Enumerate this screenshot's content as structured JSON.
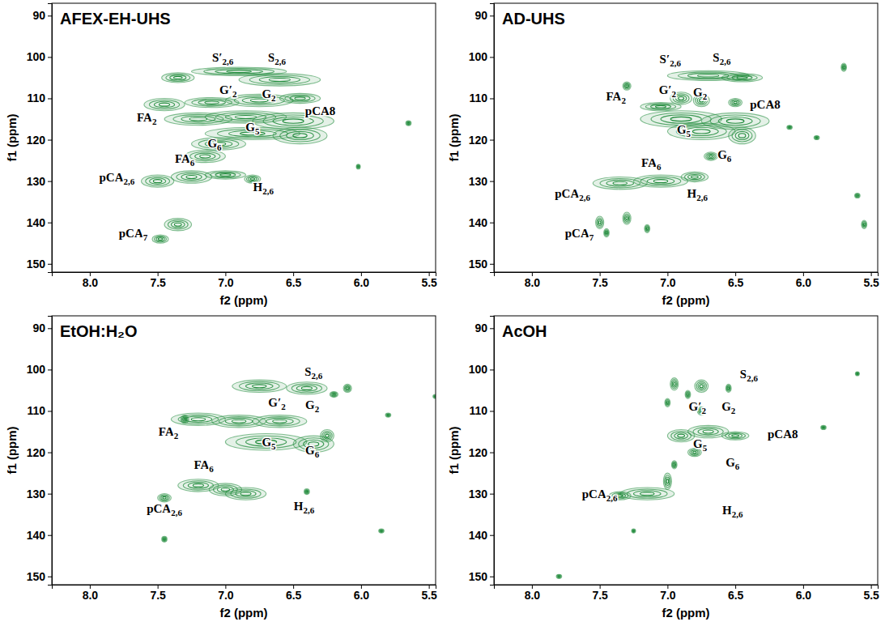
{
  "chart_data": [
    {
      "type": "contour",
      "title": "AFEX-EH-UHS",
      "x_label": "f2 (ppm)",
      "y_label": "f1 (ppm)",
      "color": "#1f8a3a",
      "xlim": [
        8.28,
        5.45
      ],
      "ylim": [
        87,
        152
      ],
      "xticks": [
        {
          "value": 8,
          "label": "8.0"
        },
        7.5,
        {
          "value": 7,
          "label": "7.0"
        },
        6.5,
        {
          "value": 6,
          "label": "6.0"
        },
        5.5
      ],
      "yticks": [
        90,
        100,
        110,
        120,
        130,
        140,
        150
      ],
      "peaks": {
        "x": [
          7.35,
          6.9,
          6.6,
          7.45,
          7.1,
          6.75,
          6.45,
          7.2,
          6.85,
          6.5,
          6.8,
          6.45,
          7.05,
          7.15,
          7.5,
          7.25,
          7.0,
          6.8,
          7.35,
          7.48,
          5.65,
          6.02
        ],
        "y": [
          105,
          103.5,
          105.5,
          111.5,
          111,
          110.5,
          110,
          115,
          114.5,
          115.5,
          118.5,
          119,
          121,
          124,
          130,
          129,
          128.5,
          129.5,
          140.5,
          144,
          116,
          126.5
        ],
        "dx": [
          0.12,
          0.35,
          0.3,
          0.15,
          0.2,
          0.25,
          0.15,
          0.25,
          0.3,
          0.3,
          0.35,
          0.2,
          0.2,
          0.15,
          0.12,
          0.15,
          0.15,
          0.06,
          0.1,
          0.06,
          0.02,
          0.015
        ],
        "dy": [
          1.2,
          1.0,
          1.5,
          1.5,
          1.2,
          1.5,
          1.2,
          1.5,
          1.5,
          2,
          1.5,
          2,
          1.5,
          1.5,
          1.5,
          1.5,
          1,
          1,
          1.5,
          1,
          0.6,
          0.6
        ]
      },
      "labels": [
        {
          "text": "S′",
          "sub": "2,6",
          "x": 7.02,
          "y": 101
        },
        {
          "text": "S",
          "sub": "2,6",
          "x": 6.62,
          "y": 101
        },
        {
          "text": "G′",
          "sub": "2",
          "x": 6.98,
          "y": 109
        },
        {
          "text": "G",
          "sub": "2",
          "x": 6.68,
          "y": 110
        },
        {
          "text": "FA",
          "sub": "2",
          "x": 7.58,
          "y": 115.5
        },
        {
          "text": "pCA8",
          "x": 6.3,
          "y": 114
        },
        {
          "text": "G",
          "sub": "5",
          "x": 6.8,
          "y": 118
        },
        {
          "text": "G",
          "sub": "6",
          "x": 7.08,
          "y": 121.8
        },
        {
          "text": "FA",
          "sub": "6",
          "x": 7.3,
          "y": 125.5
        },
        {
          "text": "pCA",
          "sub": "2,6",
          "x": 7.8,
          "y": 130
        },
        {
          "text": "H",
          "sub": "2,6",
          "x": 6.72,
          "y": 132.5
        },
        {
          "text": "pCA",
          "sub": "7",
          "x": 7.68,
          "y": 143.5
        }
      ]
    },
    {
      "type": "contour",
      "title": "AD-UHS",
      "x_label": "f2 (ppm)",
      "y_label": "f1 (ppm)",
      "color": "#1f8a3a",
      "xlim": [
        8.28,
        5.45
      ],
      "ylim": [
        87,
        152
      ],
      "xticks": [
        {
          "value": 8,
          "label": "8.0"
        },
        7.5,
        {
          "value": 7,
          "label": "7.0"
        },
        6.5,
        {
          "value": 6,
          "label": "6.0"
        },
        5.5
      ],
      "yticks": [
        90,
        100,
        110,
        120,
        130,
        140,
        150
      ],
      "peaks": {
        "x": [
          6.7,
          6.45,
          7.3,
          6.9,
          6.75,
          6.5,
          7.05,
          6.9,
          6.5,
          6.75,
          6.45,
          7.35,
          7.05,
          6.8,
          6.68,
          7.5,
          7.3,
          7.45,
          7.15,
          5.7,
          5.55,
          5.9,
          6.1,
          5.6
        ],
        "y": [
          104.5,
          105,
          107,
          110,
          110.5,
          111,
          112,
          115,
          115.5,
          118,
          119,
          130.5,
          130,
          129,
          124,
          140,
          139,
          142.5,
          141.5,
          102.5,
          140.5,
          119.5,
          117,
          133.5
        ],
        "dx": [
          0.3,
          0.15,
          0.03,
          0.08,
          0.06,
          0.05,
          0.15,
          0.3,
          0.25,
          0.25,
          0.1,
          0.2,
          0.2,
          0.1,
          0.05,
          0.03,
          0.03,
          0.02,
          0.02,
          0.02,
          0.02,
          0.02,
          0.02,
          0.02
        ],
        "dy": [
          1.2,
          1,
          1,
          1.5,
          1.5,
          1,
          1,
          2,
          2,
          2,
          2,
          1.5,
          1.5,
          1.2,
          1,
          1.5,
          1.5,
          1,
          1,
          1,
          1,
          0.5,
          0.5,
          0.6
        ]
      },
      "labels": [
        {
          "text": "S′",
          "sub": "2,6",
          "x": 6.98,
          "y": 101.5
        },
        {
          "text": "S",
          "sub": "2,6",
          "x": 6.6,
          "y": 101
        },
        {
          "text": "FA",
          "sub": "2",
          "x": 7.38,
          "y": 110.5
        },
        {
          "text": "G′",
          "sub": "2",
          "x": 7.0,
          "y": 109
        },
        {
          "text": "G",
          "sub": "2",
          "x": 6.76,
          "y": 109.5
        },
        {
          "text": "pCA8",
          "x": 6.28,
          "y": 112.5
        },
        {
          "text": "G",
          "sub": "5",
          "x": 6.88,
          "y": 118.5
        },
        {
          "text": "G",
          "sub": "6",
          "x": 6.58,
          "y": 124.5
        },
        {
          "text": "FA",
          "sub": "6",
          "x": 7.12,
          "y": 126.5
        },
        {
          "text": "pCA",
          "sub": "2,6",
          "x": 7.7,
          "y": 134
        },
        {
          "text": "H",
          "sub": "2,6",
          "x": 6.78,
          "y": 134
        },
        {
          "text": "pCA",
          "sub": "7",
          "x": 7.65,
          "y": 143.5
        }
      ]
    },
    {
      "type": "contour",
      "title": "EtOH:H₂O",
      "x_label": "f2 (ppm)",
      "y_label": "f1 (ppm)",
      "color": "#1f8a3a",
      "xlim": [
        8.28,
        5.45
      ],
      "ylim": [
        87,
        152
      ],
      "xticks": [
        {
          "value": 8,
          "label": "8.0"
        },
        7.5,
        {
          "value": 7,
          "label": "7.0"
        },
        6.5,
        {
          "value": 6,
          "label": "6.0"
        },
        5.5
      ],
      "yticks": [
        90,
        100,
        110,
        120,
        130,
        140,
        150
      ],
      "peaks": {
        "x": [
          6.75,
          6.4,
          7.2,
          6.9,
          6.6,
          6.25,
          6.7,
          6.35,
          7.45,
          7.2,
          6.85,
          7.0,
          7.3,
          6.1,
          6.2,
          6.4,
          5.85,
          7.45,
          5.8,
          5.45
        ],
        "y": [
          104,
          104.5,
          112,
          112.5,
          112.5,
          116,
          117.5,
          118,
          131,
          128,
          130,
          129,
          112,
          104.5,
          106,
          129.5,
          139,
          141,
          111,
          106.5
        ],
        "dx": [
          0.2,
          0.15,
          0.2,
          0.2,
          0.2,
          0.05,
          0.3,
          0.15,
          0.05,
          0.15,
          0.15,
          0.12,
          0.03,
          0.03,
          0.03,
          0.02,
          0.02,
          0.02,
          0.02,
          0.02
        ],
        "dy": [
          1.5,
          1.5,
          1.5,
          1.5,
          1.5,
          1.5,
          2,
          2,
          1,
          1.5,
          1.5,
          1.5,
          1,
          1,
          0.7,
          0.7,
          0.5,
          0.7,
          0.5,
          0.5
        ]
      },
      "labels": [
        {
          "text": "S",
          "sub": "2,6",
          "x": 6.35,
          "y": 101.5
        },
        {
          "text": "G′",
          "sub": "2",
          "x": 6.62,
          "y": 109
        },
        {
          "text": "G",
          "sub": "2",
          "x": 6.36,
          "y": 109.5
        },
        {
          "text": "FA",
          "sub": "2",
          "x": 7.42,
          "y": 116
        },
        {
          "text": "G",
          "sub": "5",
          "x": 6.68,
          "y": 118.5
        },
        {
          "text": "G",
          "sub": "6",
          "x": 6.36,
          "y": 120.5
        },
        {
          "text": "FA",
          "sub": "6",
          "x": 7.16,
          "y": 124
        },
        {
          "text": "pCA",
          "sub": "2,6",
          "x": 7.45,
          "y": 134.5
        },
        {
          "text": "H",
          "sub": "2,6",
          "x": 6.42,
          "y": 134
        }
      ]
    },
    {
      "type": "contour",
      "title": "AcOH",
      "x_label": "f2 (ppm)",
      "y_label": "f1 (ppm)",
      "color": "#1f8a3a",
      "xlim": [
        8.28,
        5.45
      ],
      "ylim": [
        87,
        152
      ],
      "xticks": [
        {
          "value": 8,
          "label": "8.0"
        },
        7.5,
        {
          "value": 7,
          "label": "7.0"
        },
        6.5,
        {
          "value": 6,
          "label": "6.0"
        },
        5.5
      ],
      "yticks": [
        90,
        100,
        110,
        120,
        130,
        140,
        150
      ],
      "peaks": {
        "x": [
          6.95,
          6.75,
          6.85,
          6.55,
          7.0,
          6.75,
          6.9,
          6.7,
          6.5,
          6.8,
          6.95,
          7.15,
          7.35,
          7.0,
          5.85,
          7.8,
          5.6,
          7.25
        ],
        "y": [
          103.5,
          104,
          106,
          104.5,
          108,
          110,
          116,
          115,
          116,
          120,
          123,
          130,
          130.5,
          127,
          114,
          150,
          101,
          139
        ],
        "dx": [
          0.03,
          0.05,
          0.02,
          0.02,
          0.02,
          0.03,
          0.1,
          0.15,
          0.1,
          0.05,
          0.02,
          0.2,
          0.08,
          0.03,
          0.02,
          0.02,
          0.015,
          0.015
        ],
        "dy": [
          1.5,
          1.5,
          1,
          1,
          1,
          1,
          1.5,
          1.5,
          1,
          1,
          1,
          1.5,
          1,
          2,
          0.5,
          0.5,
          0.5,
          0.5
        ]
      },
      "labels": [
        {
          "text": "S",
          "sub": "2,6",
          "x": 6.4,
          "y": 102
        },
        {
          "text": "G′",
          "sub": "2",
          "x": 6.78,
          "y": 110
        },
        {
          "text": "G",
          "sub": "2",
          "x": 6.55,
          "y": 110
        },
        {
          "text": "pCA8",
          "x": 6.15,
          "y": 116.5
        },
        {
          "text": "G",
          "sub": "5",
          "x": 6.76,
          "y": 119
        },
        {
          "text": "G",
          "sub": "6",
          "x": 6.52,
          "y": 123.5
        },
        {
          "text": "pCA",
          "sub": "2,6",
          "x": 7.5,
          "y": 131
        },
        {
          "text": "H",
          "sub": "2,6",
          "x": 6.52,
          "y": 135
        }
      ]
    }
  ]
}
